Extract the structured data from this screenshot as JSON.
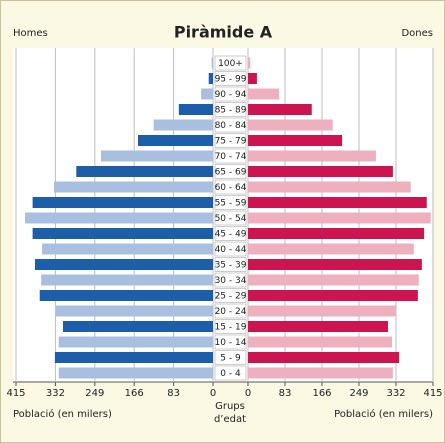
{
  "chart_data": {
    "type": "pyramid",
    "title": "Piràmide A",
    "category_label": "Grups d’edat",
    "xlabel": "Població (en milers)",
    "categories": [
      "0 - 4",
      "5 - 9",
      "10 - 14",
      "15 - 19",
      "20 - 24",
      "25 - 29",
      "30 - 34",
      "35 - 39",
      "40 - 44",
      "45 - 49",
      "50 - 54",
      "55 - 59",
      "60 - 64",
      "65 - 69",
      "70 - 74",
      "75 - 79",
      "80 - 84",
      "85 - 89",
      "90 - 94",
      "95 - 99",
      "100+"
    ],
    "series": [
      {
        "name": "Homes",
        "colors": [
          "#a9bfe0",
          "#1d5ea8"
        ],
        "values": [
          325,
          333,
          325,
          316,
          331,
          365,
          362,
          375,
          360,
          380,
          396,
          380,
          335,
          288,
          236,
          158,
          125,
          72,
          25,
          9,
          3
        ]
      },
      {
        "name": "Dones",
        "colors": [
          "#eeb0bf",
          "#cc1450"
        ],
        "values": [
          325,
          339,
          323,
          314,
          332,
          381,
          383,
          390,
          372,
          395,
          410,
          401,
          365,
          325,
          287,
          211,
          190,
          143,
          70,
          20,
          5
        ]
      }
    ],
    "xlim": [
      0,
      415
    ],
    "xticks": [
      0,
      83,
      166,
      249,
      332,
      415
    ],
    "grid": true
  }
}
